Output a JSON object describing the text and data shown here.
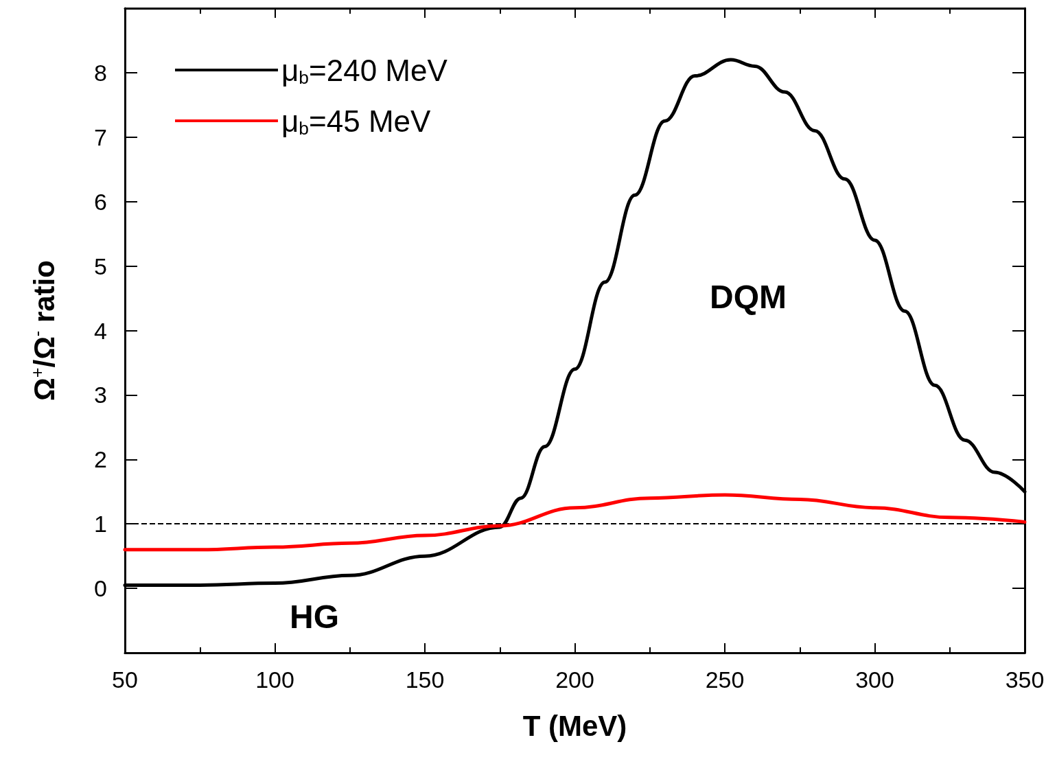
{
  "chart_data": {
    "type": "line",
    "xlabel": "T (MeV)",
    "ylabel": "Ω$^{+}$/Ω$^{-}$ ratio",
    "xlim": [
      50,
      350
    ],
    "xticks": [
      50,
      100,
      150,
      200,
      250,
      300,
      350
    ],
    "ylim": [
      -1,
      9
    ],
    "yticks": [
      0,
      1,
      2,
      3,
      4,
      5,
      6,
      7,
      8
    ],
    "series": [
      {
        "name": "μ$_{b}$=240 MeV",
        "color": "#000000",
        "x": [
          50,
          75,
          100,
          125,
          150,
          175,
          182,
          190,
          200,
          210,
          220,
          230,
          240,
          252,
          260,
          270,
          280,
          290,
          300,
          310,
          320,
          330,
          340,
          350
        ],
        "values": [
          0.05,
          0.05,
          0.08,
          0.2,
          0.5,
          0.95,
          1.4,
          2.2,
          3.4,
          4.75,
          6.1,
          7.25,
          7.95,
          8.2,
          8.1,
          7.7,
          7.1,
          6.35,
          5.4,
          4.3,
          3.15,
          2.3,
          1.8,
          1.5
        ]
      },
      {
        "name": "μ$_{b}$=45 MeV",
        "color": "#ff0000",
        "x": [
          50,
          75,
          100,
          125,
          150,
          175,
          200,
          225,
          250,
          275,
          300,
          325,
          350
        ],
        "values": [
          0.6,
          0.6,
          0.64,
          0.7,
          0.82,
          0.97,
          1.25,
          1.4,
          1.45,
          1.38,
          1.25,
          1.1,
          1.03
        ]
      }
    ],
    "ref_lines": [
      {
        "axis": "y",
        "value": 1,
        "color": "#000000",
        "line_style": "dashed"
      }
    ],
    "annotations": [
      "DQM",
      "HG"
    ],
    "legend": "top left",
    "line_style": "solid",
    "marker": "none",
    "grid": false
  }
}
